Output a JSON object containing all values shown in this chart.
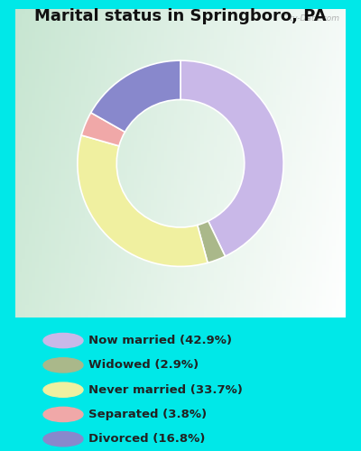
{
  "title": "Marital status in Springboro, PA",
  "categories": [
    "Now married",
    "Widowed",
    "Never married",
    "Separated",
    "Divorced"
  ],
  "values": [
    42.9,
    2.9,
    33.7,
    3.8,
    16.8
  ],
  "colors": [
    "#c9b8e8",
    "#aab88a",
    "#f0f0a0",
    "#f0a8a8",
    "#8888cc"
  ],
  "bg_cyan": "#00e8e8",
  "bg_chart_color": "#c8e8d0",
  "title_fontsize": 13,
  "watermark": "City-Data.com",
  "donut_outer_r": 1.0,
  "donut_inner_r": 0.62
}
